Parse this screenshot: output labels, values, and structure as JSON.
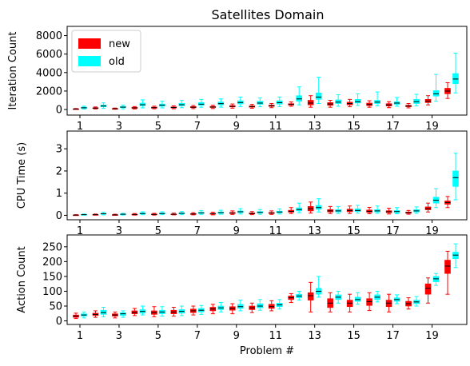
{
  "title": "Satellites Domain",
  "colors": {
    "new": "#ff0000",
    "old": "#00ffff",
    "median": "#000000"
  },
  "legend": {
    "placement": "upper-left",
    "items": [
      {
        "label": "new",
        "color": "#ff0000"
      },
      {
        "label": "old",
        "color": "#00ffff"
      }
    ]
  },
  "chart_data": [
    {
      "type": "box",
      "ylabel": "Iteration Count",
      "ylim": [
        -600,
        9000
      ],
      "yticks": [
        "0",
        "2000",
        "4000",
        "6000",
        "8000"
      ],
      "yticks_values": [
        0,
        2000,
        4000,
        6000,
        8000
      ],
      "xticks": [
        "1",
        "3",
        "5",
        "7",
        "9",
        "11",
        "13",
        "15",
        "17",
        "19"
      ],
      "problems": [
        1,
        2,
        3,
        4,
        5,
        6,
        7,
        8,
        9,
        10,
        11,
        12,
        13,
        14,
        15,
        16,
        17,
        18,
        19,
        20
      ],
      "series": [
        {
          "name": "new",
          "boxes": [
            [
              20,
              40,
              60,
              80,
              110
            ],
            [
              60,
              120,
              160,
              200,
              280
            ],
            [
              30,
              60,
              90,
              120,
              160
            ],
            [
              60,
              130,
              180,
              230,
              320
            ],
            [
              80,
              150,
              200,
              260,
              360
            ],
            [
              80,
              170,
              220,
              290,
              400
            ],
            [
              100,
              200,
              250,
              320,
              440
            ],
            [
              110,
              220,
              270,
              340,
              460
            ],
            [
              150,
              280,
              340,
              430,
              600
            ],
            [
              140,
              250,
              320,
              400,
              560
            ],
            [
              200,
              340,
              400,
              480,
              650
            ],
            [
              350,
              480,
              550,
              640,
              820
            ],
            [
              250,
              500,
              700,
              1000,
              1500
            ],
            [
              250,
              450,
              600,
              750,
              1000
            ],
            [
              300,
              500,
              650,
              800,
              1100
            ],
            [
              250,
              420,
              550,
              700,
              950
            ],
            [
              200,
              380,
              500,
              640,
              850
            ],
            [
              180,
              300,
              380,
              460,
              650
            ],
            [
              500,
              750,
              900,
              1100,
              1500
            ],
            [
              1200,
              1700,
              2000,
              2300,
              2900
            ]
          ]
        },
        {
          "name": "old",
          "boxes": [
            [
              50,
              130,
              190,
              260,
              360
            ],
            [
              120,
              280,
              380,
              490,
              720
            ],
            [
              80,
              190,
              260,
              340,
              480
            ],
            [
              180,
              400,
              520,
              700,
              1050
            ],
            [
              180,
              350,
              470,
              600,
              900
            ],
            [
              200,
              400,
              520,
              680,
              980
            ],
            [
              250,
              450,
              580,
              750,
              1100
            ],
            [
              260,
              500,
              640,
              820,
              1150
            ],
            [
              320,
              600,
              760,
              950,
              1350
            ],
            [
              300,
              560,
              700,
              900,
              1250
            ],
            [
              320,
              580,
              750,
              950,
              1350
            ],
            [
              500,
              900,
              1150,
              1500,
              2450
            ],
            [
              650,
              1100,
              1350,
              1800,
              3500
            ],
            [
              350,
              650,
              800,
              1050,
              1600
            ],
            [
              450,
              700,
              850,
              1100,
              1700
            ],
            [
              400,
              650,
              800,
              1000,
              1900
            ],
            [
              350,
              550,
              700,
              850,
              1300
            ],
            [
              400,
              650,
              850,
              1100,
              1650
            ],
            [
              900,
              1450,
              1700,
              2050,
              3800
            ],
            [
              1800,
              2800,
              3300,
              3900,
              6100
            ]
          ]
        }
      ]
    },
    {
      "type": "box",
      "ylabel": "CPU Time (s)",
      "ylim": [
        -0.2,
        3.8
      ],
      "yticks": [
        "0",
        "1",
        "2",
        "3"
      ],
      "yticks_values": [
        0,
        1,
        2,
        3
      ],
      "xticks": [
        "1",
        "3",
        "5",
        "7",
        "9",
        "11",
        "13",
        "15",
        "17",
        "19"
      ],
      "problems": [
        1,
        2,
        3,
        4,
        5,
        6,
        7,
        8,
        9,
        10,
        11,
        12,
        13,
        14,
        15,
        16,
        17,
        18,
        19,
        20
      ],
      "series": [
        {
          "name": "new",
          "boxes": [
            [
              0,
              0.01,
              0.01,
              0.02,
              0.03
            ],
            [
              0.01,
              0.02,
              0.03,
              0.04,
              0.06
            ],
            [
              0.01,
              0.02,
              0.02,
              0.03,
              0.05
            ],
            [
              0.01,
              0.03,
              0.04,
              0.05,
              0.08
            ],
            [
              0.01,
              0.03,
              0.04,
              0.06,
              0.09
            ],
            [
              0.02,
              0.03,
              0.05,
              0.06,
              0.1
            ],
            [
              0.02,
              0.04,
              0.06,
              0.08,
              0.12
            ],
            [
              0.02,
              0.05,
              0.07,
              0.09,
              0.14
            ],
            [
              0.04,
              0.08,
              0.1,
              0.13,
              0.2
            ],
            [
              0.03,
              0.06,
              0.08,
              0.11,
              0.17
            ],
            [
              0.04,
              0.08,
              0.1,
              0.13,
              0.2
            ],
            [
              0.08,
              0.14,
              0.18,
              0.23,
              0.35
            ],
            [
              0.1,
              0.2,
              0.3,
              0.4,
              0.6
            ],
            [
              0.08,
              0.15,
              0.2,
              0.26,
              0.4
            ],
            [
              0.08,
              0.16,
              0.22,
              0.28,
              0.42
            ],
            [
              0.07,
              0.13,
              0.18,
              0.24,
              0.36
            ],
            [
              0.06,
              0.12,
              0.16,
              0.21,
              0.32
            ],
            [
              0.05,
              0.09,
              0.12,
              0.15,
              0.22
            ],
            [
              0.15,
              0.25,
              0.3,
              0.38,
              0.55
            ],
            [
              0.35,
              0.5,
              0.58,
              0.65,
              0.85
            ]
          ]
        },
        {
          "name": "old",
          "boxes": [
            [
              0.01,
              0.02,
              0.03,
              0.04,
              0.06
            ],
            [
              0.02,
              0.05,
              0.07,
              0.09,
              0.14
            ],
            [
              0.01,
              0.03,
              0.05,
              0.06,
              0.09
            ],
            [
              0.03,
              0.06,
              0.08,
              0.11,
              0.16
            ],
            [
              0.03,
              0.06,
              0.08,
              0.11,
              0.16
            ],
            [
              0.03,
              0.06,
              0.09,
              0.12,
              0.17
            ],
            [
              0.04,
              0.08,
              0.11,
              0.14,
              0.21
            ],
            [
              0.05,
              0.09,
              0.12,
              0.15,
              0.23
            ],
            [
              0.06,
              0.12,
              0.16,
              0.2,
              0.3
            ],
            [
              0.05,
              0.1,
              0.13,
              0.17,
              0.26
            ],
            [
              0.06,
              0.11,
              0.15,
              0.19,
              0.29
            ],
            [
              0.12,
              0.2,
              0.26,
              0.34,
              0.55
            ],
            [
              0.15,
              0.27,
              0.35,
              0.45,
              0.75
            ],
            [
              0.08,
              0.15,
              0.2,
              0.26,
              0.4
            ],
            [
              0.1,
              0.17,
              0.22,
              0.29,
              0.45
            ],
            [
              0.09,
              0.15,
              0.2,
              0.26,
              0.42
            ],
            [
              0.07,
              0.12,
              0.17,
              0.22,
              0.35
            ],
            [
              0.09,
              0.15,
              0.2,
              0.26,
              0.38
            ],
            [
              0.35,
              0.55,
              0.68,
              0.82,
              1.2
            ],
            [
              0.7,
              1.3,
              1.7,
              2.0,
              2.8
            ]
          ]
        }
      ]
    },
    {
      "type": "box",
      "ylabel": "Action Count",
      "ylim": [
        -12,
        290
      ],
      "yticks": [
        "0",
        "50",
        "100",
        "150",
        "200",
        "250"
      ],
      "yticks_values": [
        0,
        50,
        100,
        150,
        200,
        250
      ],
      "xticks": [
        "1",
        "3",
        "5",
        "7",
        "9",
        "11",
        "13",
        "15",
        "17",
        "19"
      ],
      "xlabel": "Problem #",
      "problems": [
        1,
        2,
        3,
        4,
        5,
        6,
        7,
        8,
        9,
        10,
        11,
        12,
        13,
        14,
        15,
        16,
        17,
        18,
        19,
        20
      ],
      "series": [
        {
          "name": "new",
          "boxes": [
            [
              8,
              12,
              16,
              20,
              26
            ],
            [
              12,
              18,
              22,
              26,
              34
            ],
            [
              10,
              16,
              20,
              24,
              30
            ],
            [
              18,
              24,
              28,
              34,
              42
            ],
            [
              14,
              22,
              28,
              34,
              48
            ],
            [
              16,
              24,
              30,
              36,
              46
            ],
            [
              20,
              28,
              34,
              40,
              50
            ],
            [
              24,
              34,
              40,
              46,
              56
            ],
            [
              24,
              36,
              42,
              48,
              58
            ],
            [
              28,
              38,
              44,
              50,
              60
            ],
            [
              34,
              42,
              48,
              56,
              68
            ],
            [
              62,
              72,
              78,
              84,
              92
            ],
            [
              30,
              70,
              85,
              95,
              130
            ],
            [
              30,
              45,
              60,
              75,
              95
            ],
            [
              30,
              48,
              60,
              70,
              90
            ],
            [
              35,
              52,
              65,
              75,
              95
            ],
            [
              30,
              48,
              60,
              70,
              90
            ],
            [
              40,
              50,
              58,
              66,
              78
            ],
            [
              60,
              90,
              110,
              125,
              145
            ],
            [
              90,
              160,
              185,
              205,
              235
            ]
          ]
        },
        {
          "name": "old",
          "boxes": [
            [
              10,
              16,
              20,
              24,
              30
            ],
            [
              14,
              22,
              28,
              36,
              46
            ],
            [
              12,
              18,
              24,
              28,
              34
            ],
            [
              20,
              26,
              32,
              38,
              50
            ],
            [
              16,
              24,
              30,
              36,
              48
            ],
            [
              18,
              26,
              32,
              38,
              50
            ],
            [
              22,
              30,
              36,
              42,
              52
            ],
            [
              30,
              38,
              44,
              50,
              62
            ],
            [
              34,
              42,
              48,
              56,
              70
            ],
            [
              36,
              44,
              50,
              58,
              72
            ],
            [
              40,
              48,
              54,
              60,
              72
            ],
            [
              70,
              78,
              84,
              90,
              100
            ],
            [
              80,
              90,
              100,
              110,
              150
            ],
            [
              60,
              72,
              80,
              88,
              100
            ],
            [
              56,
              66,
              72,
              80,
              95
            ],
            [
              64,
              72,
              80,
              88,
              100
            ],
            [
              58,
              66,
              72,
              78,
              88
            ],
            [
              50,
              58,
              64,
              70,
              82
            ],
            [
              120,
              132,
              142,
              150,
              160
            ],
            [
              180,
              210,
              222,
              232,
              260
            ]
          ]
        }
      ]
    }
  ]
}
